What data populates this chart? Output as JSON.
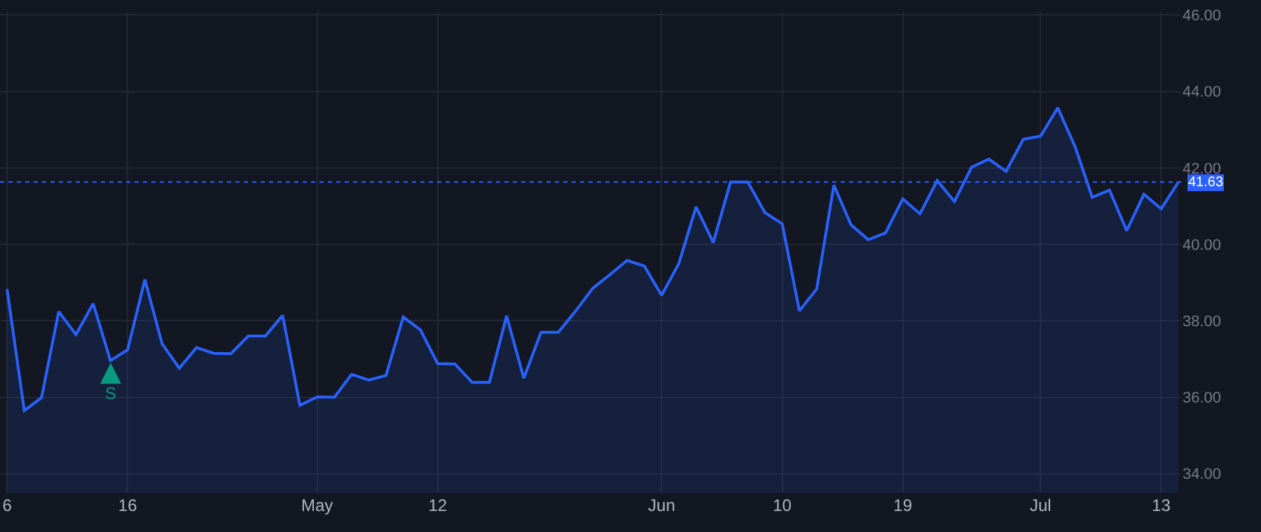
{
  "chart_data": {
    "type": "area",
    "categories": [
      "6",
      null,
      null,
      null,
      null,
      null,
      null,
      "16",
      null,
      null,
      null,
      null,
      null,
      null,
      null,
      null,
      null,
      null,
      "May",
      null,
      null,
      null,
      null,
      null,
      null,
      "12",
      null,
      null,
      null,
      null,
      null,
      null,
      null,
      null,
      null,
      null,
      null,
      null,
      "Jun",
      null,
      null,
      null,
      null,
      null,
      null,
      "10",
      null,
      null,
      null,
      null,
      null,
      null,
      "19",
      null,
      null,
      null,
      null,
      null,
      null,
      null,
      "Jul",
      null,
      null,
      null,
      null,
      null,
      null,
      "13",
      null
    ],
    "series": [
      {
        "color": "#2962ff",
        "values": [
          38.83,
          35.65,
          35.99,
          38.24,
          37.64,
          38.45,
          36.96,
          37.24,
          39.08,
          37.4,
          36.76,
          37.3,
          37.15,
          37.14,
          37.6,
          37.6,
          38.14,
          35.79,
          36.01,
          36.0,
          36.6,
          36.45,
          36.57,
          38.1,
          37.76,
          36.88,
          36.87,
          36.39,
          36.39,
          38.13,
          36.5,
          37.7,
          37.7,
          38.25,
          38.85,
          39.21,
          39.58,
          39.43,
          38.67,
          39.5,
          40.98,
          40.05,
          41.63,
          41.63,
          40.83,
          40.54,
          38.26,
          38.83,
          41.55,
          40.51,
          40.12,
          40.3,
          41.19,
          40.8,
          41.67,
          41.12,
          42.02,
          42.23,
          41.91,
          42.75,
          42.83,
          43.57,
          42.56,
          41.23,
          41.42,
          40.36,
          41.31,
          40.93,
          41.63
        ]
      }
    ],
    "ylim": [
      33.5,
      46.1
    ],
    "yticks": [
      {
        "value": 34,
        "label": "34.00"
      },
      {
        "value": 36,
        "label": "36.00"
      },
      {
        "value": 38,
        "label": "38.00"
      },
      {
        "value": 40,
        "label": "40.00"
      },
      {
        "value": 42,
        "label": "42.00"
      },
      {
        "value": 44,
        "label": "44.00"
      },
      {
        "value": 46,
        "label": "46.00"
      }
    ],
    "ref_lines": [
      {
        "axis": "y",
        "value": 41.63,
        "label": "41.63",
        "color": "#2962ff",
        "line_style": "dotted"
      }
    ],
    "annotations": [
      "S"
    ],
    "grid": true,
    "marker": "none",
    "line_style": "solid"
  }
}
